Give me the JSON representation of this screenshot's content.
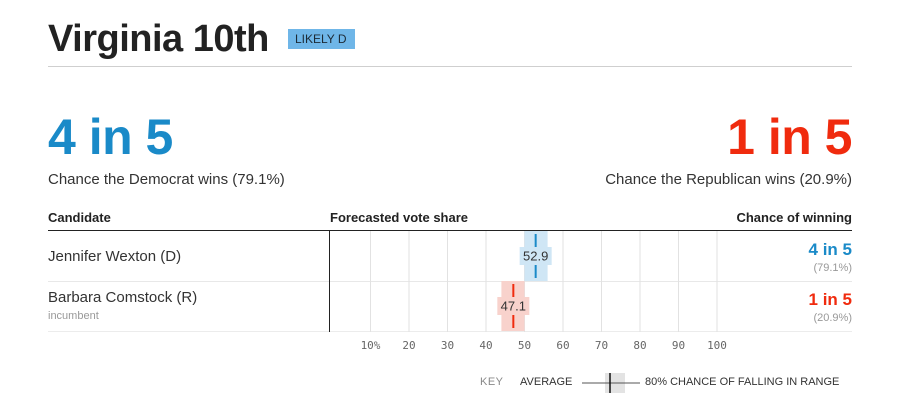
{
  "race": {
    "title": "Virginia 10th",
    "rating": "LIKELY D"
  },
  "summary": {
    "dem_odds": "4 in 5",
    "dem_text": "Chance the Democrat wins (79.1%)",
    "rep_odds": "1 in 5",
    "rep_text": "Chance the Republican wins (20.9%)"
  },
  "table": {
    "headers": {
      "candidate": "Candidate",
      "vote_share": "Forecasted vote share",
      "chance": "Chance of winning"
    },
    "rows": [
      {
        "name": "Jennifer Wexton (D)",
        "note": "",
        "average": 52.9,
        "average_label": "52.9",
        "range": [
          50,
          56
        ],
        "chance": "4 in 5",
        "chance_pct": "(79.1%)",
        "color": "#1a8ac8",
        "band_color": "#cfe6f5"
      },
      {
        "name": "Barbara Comstock (R)",
        "note": "incumbent",
        "average": 47.1,
        "average_label": "47.1",
        "range": [
          44,
          50
        ],
        "chance": "1 in 5",
        "chance_pct": "(20.9%)",
        "color": "#f02b0e",
        "band_color": "#f8d2cc"
      }
    ]
  },
  "axis": {
    "ticks": [
      10,
      20,
      30,
      40,
      50,
      60,
      70,
      80,
      90,
      100
    ],
    "tick_labels": [
      "10%",
      "20",
      "30",
      "40",
      "50",
      "60",
      "70",
      "80",
      "90",
      "100"
    ],
    "domain": [
      0,
      100
    ]
  },
  "key": {
    "label": "KEY",
    "average": "AVERAGE",
    "range": "80% CHANCE OF FALLING IN RANGE"
  }
}
